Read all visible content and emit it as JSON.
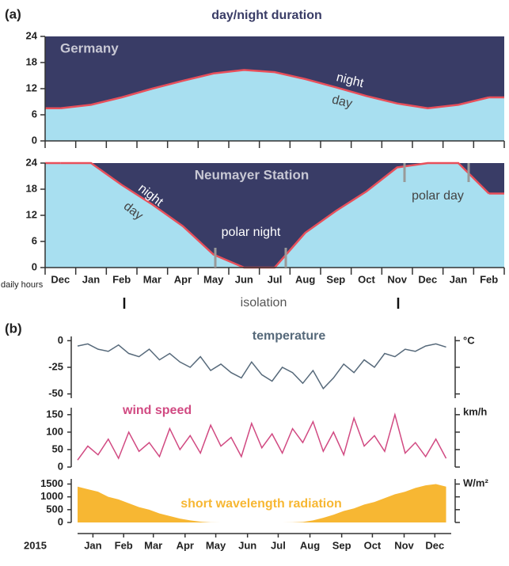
{
  "chart_data": [
    {
      "type": "daylength",
      "panel": "(a)",
      "title": "day/night duration",
      "label": "Germany",
      "night_color": "#393c66",
      "day_color": "#a8dff0",
      "color": "#e8505b",
      "values": [
        7.5,
        8.3,
        10,
        12,
        13.8,
        15.5,
        16.3,
        15.8,
        14.2,
        12.3,
        10.3,
        8.6,
        7.5,
        8.3,
        10
      ],
      "annotations": [
        "night",
        "day"
      ],
      "ylim": [
        0,
        24
      ],
      "yticks": [
        0,
        6,
        12,
        18,
        24
      ]
    },
    {
      "type": "daylength",
      "label": "Neumayer Station",
      "ylabel": "daily hours",
      "night_color": "#393c66",
      "day_color": "#a8dff0",
      "color": "#e8505b",
      "categories": [
        "Dec",
        "Jan",
        "Feb",
        "Mar",
        "Apr",
        "May",
        "Jun",
        "Jul",
        "Aug",
        "Sep",
        "Oct",
        "Nov",
        "Dec",
        "Jan",
        "Feb"
      ],
      "values": [
        24,
        24,
        19,
        14.5,
        9.5,
        3,
        0,
        0,
        8,
        13,
        17.5,
        23,
        24,
        24,
        17
      ],
      "annotations": [
        "night",
        "day",
        "polar night",
        "polar day"
      ],
      "span_label": "isolation",
      "ylim": [
        0,
        24
      ],
      "yticks": [
        0,
        6,
        12,
        18,
        24
      ]
    },
    {
      "type": "line",
      "panel": "(b)",
      "title": "temperature",
      "unit": "°C",
      "color": "#56697a",
      "x": [
        0,
        10,
        20,
        30,
        40,
        50,
        60,
        70,
        80,
        90,
        100,
        110,
        120,
        130,
        140,
        150,
        160,
        170,
        180,
        190,
        200,
        210,
        220,
        230,
        240,
        250,
        260,
        270,
        280,
        290,
        300,
        310,
        320,
        330,
        340,
        350,
        360
      ],
      "values": [
        -5,
        -3,
        -8,
        -10,
        -4,
        -12,
        -15,
        -8,
        -18,
        -12,
        -20,
        -25,
        -15,
        -28,
        -22,
        -30,
        -35,
        -20,
        -32,
        -38,
        -25,
        -30,
        -40,
        -28,
        -45,
        -35,
        -22,
        -30,
        -18,
        -25,
        -12,
        -15,
        -8,
        -10,
        -5,
        -3,
        -6
      ],
      "xlim": [
        0,
        365
      ],
      "ylim": [
        -54,
        4
      ],
      "yticks": [
        0,
        -25,
        -50
      ]
    },
    {
      "type": "line",
      "title": "wind speed",
      "unit": "km/h",
      "color": "#d14a82",
      "x": [
        0,
        10,
        20,
        30,
        40,
        50,
        60,
        70,
        80,
        90,
        100,
        110,
        120,
        130,
        140,
        150,
        160,
        170,
        180,
        190,
        200,
        210,
        220,
        230,
        240,
        250,
        260,
        270,
        280,
        290,
        300,
        310,
        320,
        330,
        340,
        350,
        360
      ],
      "values": [
        20,
        60,
        35,
        80,
        25,
        100,
        45,
        70,
        30,
        110,
        50,
        90,
        40,
        120,
        60,
        85,
        30,
        125,
        55,
        95,
        40,
        110,
        70,
        130,
        45,
        100,
        35,
        140,
        60,
        90,
        45,
        150,
        40,
        70,
        30,
        80,
        25
      ],
      "xlim": [
        0,
        365
      ],
      "ylim": [
        0,
        170
      ],
      "yticks": [
        0,
        50,
        100,
        150
      ]
    },
    {
      "type": "area",
      "title": "short wavelength radiation",
      "unit": "W/m²",
      "color": "#f7b733",
      "year": "2015",
      "x": [
        0,
        10,
        20,
        30,
        40,
        50,
        60,
        70,
        80,
        90,
        100,
        110,
        120,
        130,
        140,
        150,
        160,
        170,
        180,
        190,
        200,
        210,
        220,
        230,
        240,
        250,
        260,
        270,
        280,
        290,
        300,
        310,
        320,
        330,
        340,
        350,
        360
      ],
      "values": [
        1400,
        1300,
        1200,
        1000,
        900,
        750,
        600,
        500,
        350,
        250,
        150,
        80,
        30,
        5,
        0,
        0,
        0,
        0,
        0,
        0,
        0,
        5,
        20,
        80,
        180,
        300,
        450,
        550,
        700,
        800,
        950,
        1100,
        1200,
        1350,
        1450,
        1500,
        1400
      ],
      "xlim": [
        0,
        365
      ],
      "ylim": [
        0,
        1700
      ],
      "yticks": [
        0,
        500,
        1000,
        1500
      ],
      "xticks": [
        {
          "value": 15,
          "label": "Jan"
        },
        {
          "value": 45,
          "label": "Feb"
        },
        {
          "value": 74,
          "label": "Mar"
        },
        {
          "value": 105,
          "label": "Apr"
        },
        {
          "value": 135,
          "label": "May"
        },
        {
          "value": 166,
          "label": "Jun"
        },
        {
          "value": 196,
          "label": "Jul"
        },
        {
          "value": 227,
          "label": "Aug"
        },
        {
          "value": 258,
          "label": "Sep"
        },
        {
          "value": 288,
          "label": "Oct"
        },
        {
          "value": 319,
          "label": "Nov"
        },
        {
          "value": 349,
          "label": "Dec"
        }
      ]
    }
  ]
}
